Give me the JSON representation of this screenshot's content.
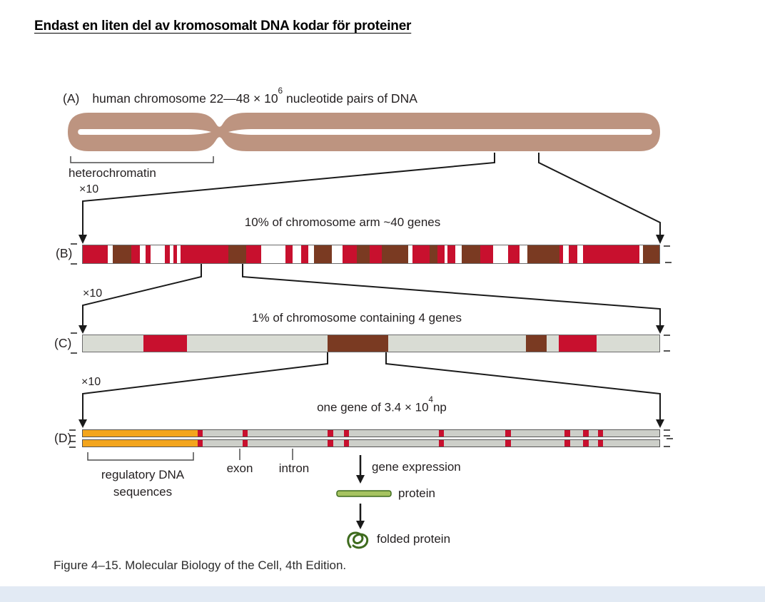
{
  "title": "Endast en liten del av kromosomalt DNA kodar för proteiner",
  "panel_a": {
    "label": "(A)",
    "caption_prefix": "human chromosome 22—48 × 10",
    "caption_exp": "6",
    "caption_suffix": " nucleotide pairs of DNA",
    "heterochromatin_label": "heterochromatin"
  },
  "zoom_labels": {
    "first": "×10",
    "second": "×10",
    "third": "×10"
  },
  "panel_b": {
    "label": "(B)",
    "caption": "10% of chromosome arm ~40 genes",
    "stripes": [
      {
        "x": 0.0,
        "w": 0.043,
        "c": "r"
      },
      {
        "x": 0.043,
        "w": 0.009,
        "c": "w"
      },
      {
        "x": 0.052,
        "w": 0.032,
        "c": "b"
      },
      {
        "x": 0.084,
        "w": 0.015,
        "c": "r"
      },
      {
        "x": 0.099,
        "w": 0.01,
        "c": "w"
      },
      {
        "x": 0.109,
        "w": 0.008,
        "c": "r"
      },
      {
        "x": 0.117,
        "w": 0.025,
        "c": "w"
      },
      {
        "x": 0.142,
        "w": 0.009,
        "c": "r"
      },
      {
        "x": 0.151,
        "w": 0.006,
        "c": "w"
      },
      {
        "x": 0.157,
        "w": 0.006,
        "c": "r"
      },
      {
        "x": 0.163,
        "w": 0.007,
        "c": "w"
      },
      {
        "x": 0.17,
        "w": 0.083,
        "c": "r"
      },
      {
        "x": 0.253,
        "w": 0.031,
        "c": "b"
      },
      {
        "x": 0.284,
        "w": 0.025,
        "c": "r"
      },
      {
        "x": 0.309,
        "w": 0.043,
        "c": "w"
      },
      {
        "x": 0.352,
        "w": 0.012,
        "c": "r"
      },
      {
        "x": 0.364,
        "w": 0.015,
        "c": "w"
      },
      {
        "x": 0.379,
        "w": 0.012,
        "c": "r"
      },
      {
        "x": 0.391,
        "w": 0.01,
        "c": "w"
      },
      {
        "x": 0.401,
        "w": 0.031,
        "c": "b"
      },
      {
        "x": 0.432,
        "w": 0.019,
        "c": "w"
      },
      {
        "x": 0.451,
        "w": 0.024,
        "c": "r"
      },
      {
        "x": 0.475,
        "w": 0.022,
        "c": "b"
      },
      {
        "x": 0.497,
        "w": 0.022,
        "c": "r"
      },
      {
        "x": 0.519,
        "w": 0.045,
        "c": "b"
      },
      {
        "x": 0.564,
        "w": 0.008,
        "c": "w"
      },
      {
        "x": 0.572,
        "w": 0.03,
        "c": "r"
      },
      {
        "x": 0.602,
        "w": 0.013,
        "c": "b"
      },
      {
        "x": 0.615,
        "w": 0.012,
        "c": "r"
      },
      {
        "x": 0.627,
        "w": 0.006,
        "c": "w"
      },
      {
        "x": 0.633,
        "w": 0.013,
        "c": "r"
      },
      {
        "x": 0.646,
        "w": 0.011,
        "c": "w"
      },
      {
        "x": 0.657,
        "w": 0.032,
        "c": "b"
      },
      {
        "x": 0.689,
        "w": 0.023,
        "c": "r"
      },
      {
        "x": 0.712,
        "w": 0.026,
        "c": "w"
      },
      {
        "x": 0.738,
        "w": 0.019,
        "c": "r"
      },
      {
        "x": 0.757,
        "w": 0.014,
        "c": "w"
      },
      {
        "x": 0.771,
        "w": 0.056,
        "c": "b"
      },
      {
        "x": 0.827,
        "w": 0.006,
        "c": "r"
      },
      {
        "x": 0.833,
        "w": 0.01,
        "c": "w"
      },
      {
        "x": 0.843,
        "w": 0.015,
        "c": "r"
      },
      {
        "x": 0.858,
        "w": 0.01,
        "c": "w"
      },
      {
        "x": 0.868,
        "w": 0.097,
        "c": "r"
      },
      {
        "x": 0.965,
        "w": 0.007,
        "c": "w"
      },
      {
        "x": 0.972,
        "w": 0.028,
        "c": "b"
      }
    ]
  },
  "panel_c": {
    "label": "(C)",
    "caption": "1% of chromosome containing 4 genes",
    "blocks": [
      {
        "x": 0.105,
        "w": 0.076,
        "c": "r"
      },
      {
        "x": 0.425,
        "w": 0.105,
        "c": "b"
      },
      {
        "x": 0.769,
        "w": 0.035,
        "c": "b"
      },
      {
        "x": 0.825,
        "w": 0.066,
        "c": "r"
      }
    ]
  },
  "panel_d": {
    "label": "(D)",
    "caption_prefix": "one gene of 3.4 × 10",
    "caption_exp": "4",
    "caption_suffix": "np",
    "segments": [
      {
        "x": 0.0,
        "w": 0.199,
        "c": "o"
      },
      {
        "x": 0.199,
        "w": 0.009,
        "c": "r"
      },
      {
        "x": 0.277,
        "w": 0.009,
        "c": "r"
      },
      {
        "x": 0.425,
        "w": 0.009,
        "c": "r"
      },
      {
        "x": 0.453,
        "w": 0.009,
        "c": "r"
      },
      {
        "x": 0.617,
        "w": 0.009,
        "c": "r"
      },
      {
        "x": 0.733,
        "w": 0.009,
        "c": "r"
      },
      {
        "x": 0.836,
        "w": 0.009,
        "c": "r"
      },
      {
        "x": 0.868,
        "w": 0.009,
        "c": "r"
      },
      {
        "x": 0.893,
        "w": 0.009,
        "c": "r"
      }
    ],
    "regulatory_label_line1": "regulatory DNA",
    "regulatory_label_line2": "sequences",
    "exon_label": "exon",
    "intron_label": "intron",
    "gene_expression_label": "gene expression",
    "protein_label": "protein",
    "folded_protein_label": "folded protein"
  },
  "figure_caption": "Figure 4–15. Molecular Biology of the Cell, 4th Edition.",
  "colors": {
    "map": {
      "r": "#c8102e",
      "b": "#7a3a22",
      "w": "#ffffff",
      "o": "#f3a51d"
    },
    "chromosome_tan": "#bd9480",
    "c_band_gray": "#d9dcd4",
    "d_strand_gray": "#cdcfc9",
    "protein_green_fill": "#a6c360",
    "protein_green_stroke": "#3e6b1e"
  }
}
